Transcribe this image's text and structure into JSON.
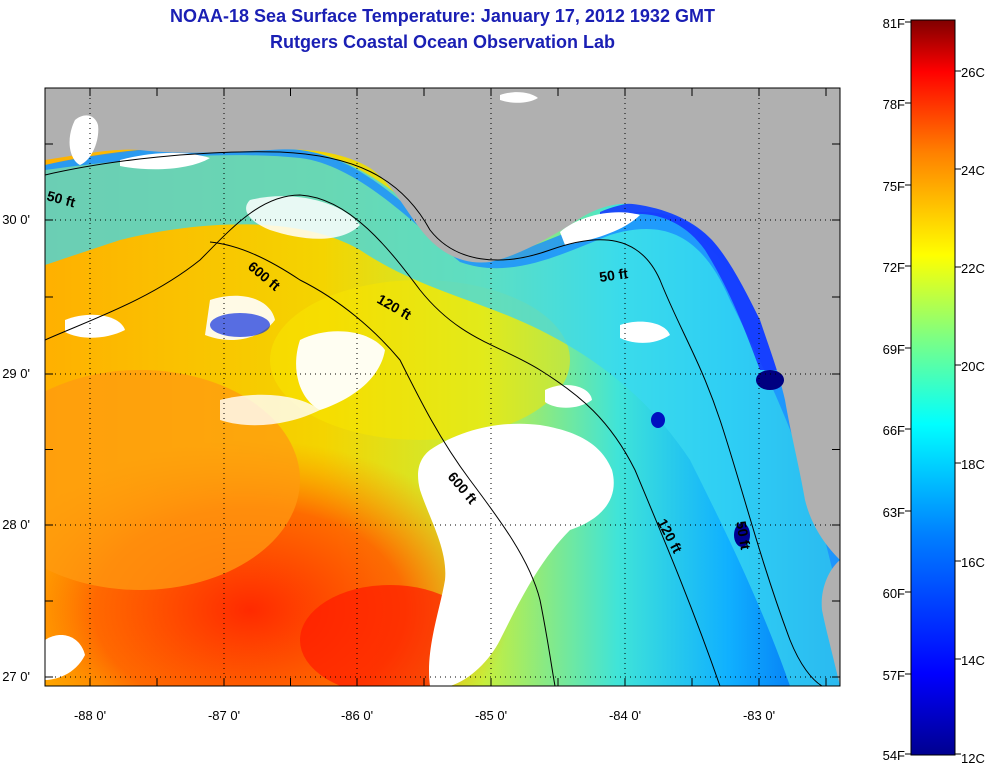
{
  "header": {
    "title": "NOAA-18 Sea Surface Temperature:  January 17, 2012 1932 GMT",
    "subtitle": "Rutgers Coastal Ocean Observation Lab"
  },
  "map": {
    "lon_ticks": [
      "-88 0'",
      "-87 0'",
      "-86 0'",
      "-85 0'",
      "-84 0'",
      "-83 0'"
    ],
    "lat_ticks": [
      "30 0'",
      "29 0'",
      "28 0'",
      "27 0'"
    ],
    "lon_range": [
      -88.35,
      -82.4
    ],
    "lat_range": [
      26.95,
      30.85
    ],
    "land_color": "#b0b0b0",
    "cloud_color": "#ffffff",
    "contour_labels": {
      "c50a": "50 ft",
      "c50b": "50 ft",
      "c50c": "50 ft",
      "c120a": "120 ft",
      "c120b": "120 ft",
      "c600a": "600 ft",
      "c600b": "600 ft"
    }
  },
  "colorbar": {
    "f_labels": [
      "81F",
      "78F",
      "75F",
      "72F",
      "69F",
      "66F",
      "63F",
      "60F",
      "57F",
      "54F"
    ],
    "c_labels": [
      "26C",
      "24C",
      "22C",
      "20C",
      "18C",
      "16C",
      "14C",
      "12C"
    ],
    "colors": [
      "#7f0000",
      "#ff0000",
      "#ff8000",
      "#ffff00",
      "#80ff80",
      "#00ffff",
      "#0080ff",
      "#0000ff",
      "#00008f"
    ]
  }
}
